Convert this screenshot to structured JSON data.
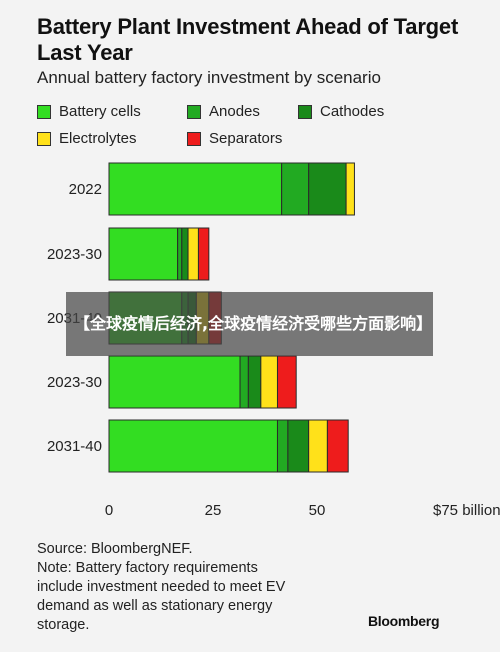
{
  "title": "Battery Plant Investment Ahead of Target Last Year",
  "subtitle": "Annual battery factory investment by scenario",
  "legend": [
    {
      "label": "Battery cells",
      "color": "#33dd22"
    },
    {
      "label": "Anodes",
      "color": "#22aa22"
    },
    {
      "label": "Cathodes",
      "color": "#1a8a1a"
    },
    {
      "label": "Electrolytes",
      "color": "#ffe11a"
    },
    {
      "label": "Separators",
      "color": "#ee1c1c"
    }
  ],
  "chart_data": {
    "type": "bar",
    "orientation": "horizontal",
    "stacked": true,
    "categories": [
      "2022",
      "2023-30",
      "2031-40",
      "2023-30",
      "2031-40"
    ],
    "series": [
      {
        "name": "Battery cells",
        "color": "#33dd22",
        "values": [
          41.5,
          16.5,
          17.5,
          31.5,
          40.5
        ]
      },
      {
        "name": "Anodes",
        "color": "#22aa22",
        "values": [
          6.5,
          1.0,
          1.5,
          2.0,
          2.5
        ]
      },
      {
        "name": "Cathodes",
        "color": "#1a8a1a",
        "values": [
          9.0,
          1.5,
          2.0,
          3.0,
          5.0
        ]
      },
      {
        "name": "Electrolytes",
        "color": "#ffe11a",
        "values": [
          2.0,
          2.5,
          3.0,
          4.0,
          4.5
        ]
      },
      {
        "name": "Separators",
        "color": "#ee1c1c",
        "values": [
          0,
          2.5,
          3.0,
          4.5,
          5.0
        ]
      }
    ],
    "x_ticks": [
      "0",
      "25",
      "50",
      "$75 billion"
    ],
    "x_tick_values": [
      0,
      25,
      50,
      75
    ],
    "xlim": [
      0,
      75
    ],
    "grid": false
  },
  "source_lines": [
    "Source: BloombergNEF.",
    "Note: Battery factory requirements",
    "include investment needed to meet EV",
    "demand as well as stationary energy",
    "storage."
  ],
  "logo": "Bloomberg",
  "overlay_text": "【全球疫情后经济,全球疫情经济受哪些方面影响】"
}
